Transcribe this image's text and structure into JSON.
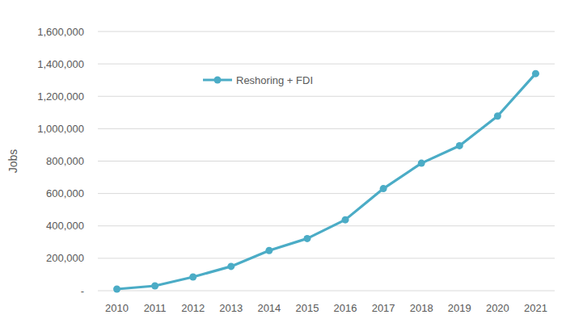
{
  "chart_data": {
    "type": "line",
    "y_label": "Jobs",
    "categories": [
      "2010",
      "2011",
      "2012",
      "2013",
      "2014",
      "2015",
      "2016",
      "2017",
      "2018",
      "2019",
      "2020",
      "2021"
    ],
    "series": [
      {
        "name": "Reshoring + FDI",
        "color": "#4bacc6",
        "marker": "circle",
        "line_style": "solid",
        "values": [
          10000,
          30000,
          85000,
          150000,
          248000,
          322000,
          438000,
          630000,
          787000,
          895000,
          1078000,
          1340000
        ]
      }
    ],
    "ylim": [
      0,
      1600000
    ],
    "yticks": [
      {
        "value": 0,
        "label": "-"
      },
      {
        "value": 200000,
        "label": "200,000"
      },
      {
        "value": 400000,
        "label": "400,000"
      },
      {
        "value": 600000,
        "label": "600,000"
      },
      {
        "value": 800000,
        "label": "800,000"
      },
      {
        "value": 1000000,
        "label": "1,000,000"
      },
      {
        "value": 1200000,
        "label": "1,200,000"
      },
      {
        "value": 1400000,
        "label": "1,400,000"
      },
      {
        "value": 1600000,
        "label": "1,600,000"
      }
    ],
    "grid": true,
    "legend": "upper left"
  }
}
